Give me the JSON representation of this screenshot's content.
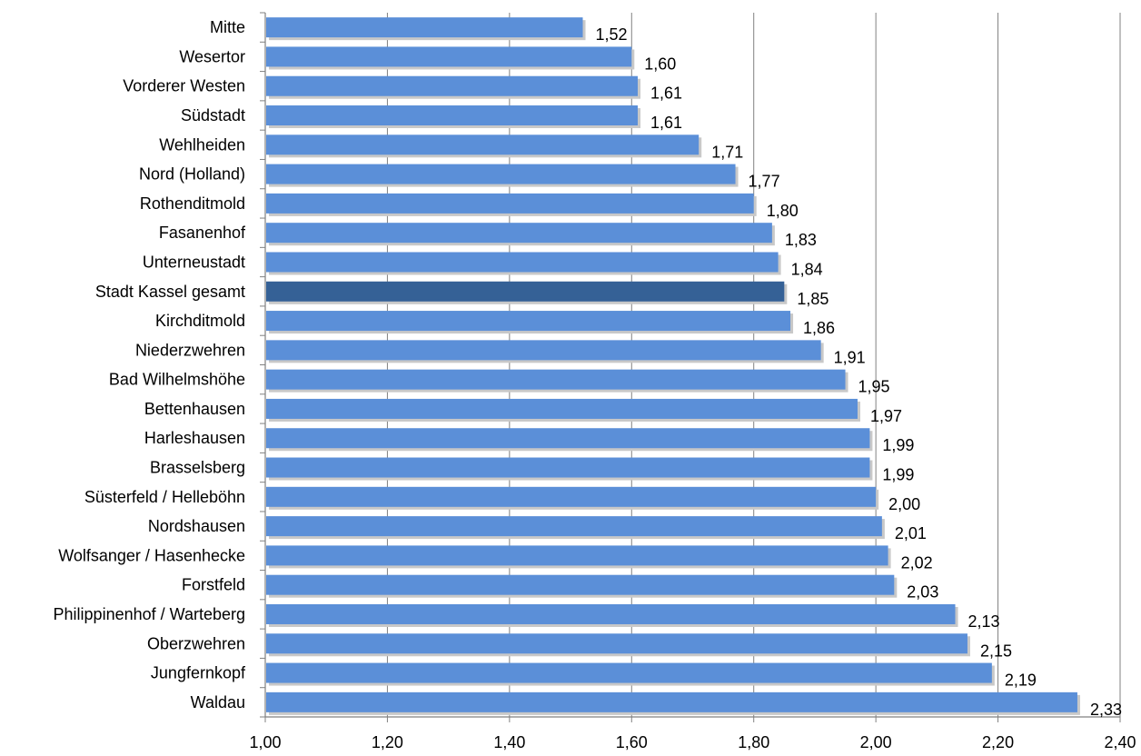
{
  "chart_data": {
    "type": "bar",
    "orientation": "horizontal",
    "title": "",
    "xlabel": "",
    "ylabel": "",
    "xlim": [
      1.0,
      2.4
    ],
    "x_ticks": [
      1.0,
      1.2,
      1.4,
      1.6,
      1.8,
      2.0,
      2.2,
      2.4
    ],
    "x_tick_labels": [
      "1,00",
      "1,20",
      "1,40",
      "1,60",
      "1,80",
      "2,00",
      "2,20",
      "2,40"
    ],
    "grid": "vertical",
    "categories": [
      "Mitte",
      "Wesertor",
      "Vorderer Westen",
      "Südstadt",
      "Wehlheiden",
      "Nord (Holland)",
      "Rothenditmold",
      "Fasanenhof",
      "Unterneustadt",
      "Stadt Kassel gesamt",
      "Kirchditmold",
      "Niederzwehren",
      "Bad Wilhelmshöhe",
      "Bettenhausen",
      "Harleshausen",
      "Brasselsberg",
      "Süsterfeld / Helleböhn",
      "Nordshausen",
      "Wolfsanger / Hasenhecke",
      "Forstfeld",
      "Philippinenhof / Warteberg",
      "Oberzwehren",
      "Jungfernkopf",
      "Waldau"
    ],
    "values": [
      1.52,
      1.6,
      1.61,
      1.61,
      1.71,
      1.77,
      1.8,
      1.83,
      1.84,
      1.85,
      1.86,
      1.91,
      1.95,
      1.97,
      1.99,
      1.99,
      2.0,
      2.01,
      2.02,
      2.03,
      2.13,
      2.15,
      2.19,
      2.33
    ],
    "value_labels": [
      "1,52",
      "1,60",
      "1,61",
      "1,61",
      "1,71",
      "1,77",
      "1,80",
      "1,83",
      "1,84",
      "1,85",
      "1,86",
      "1,91",
      "1,95",
      "1,97",
      "1,99",
      "1,99",
      "2,00",
      "2,01",
      "2,02",
      "2,03",
      "2,13",
      "2,15",
      "2,19",
      "2,33"
    ],
    "highlight_category": "Stadt Kassel gesamt",
    "colors": {
      "bar": "#5B8FD8",
      "bar_highlight": "#356196",
      "shadow": "#c8c8c8",
      "grid": "#808080",
      "axis": "#808080"
    }
  }
}
